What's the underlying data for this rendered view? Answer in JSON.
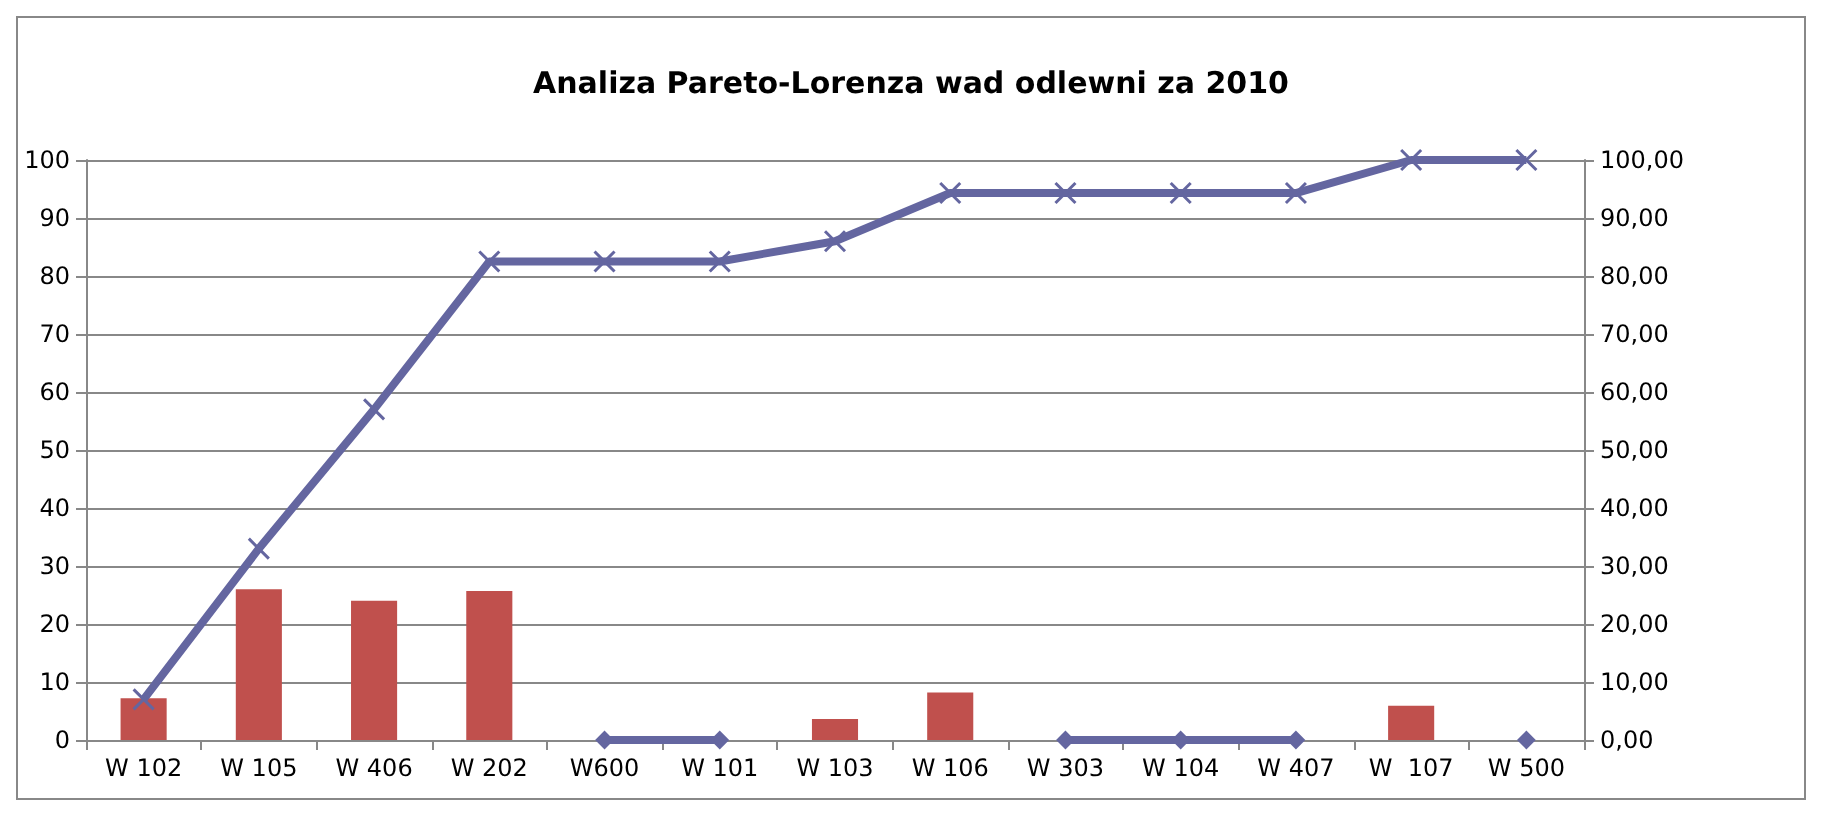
{
  "chart_data": {
    "type": "bar",
    "title": "Analiza Pareto-Lorenza wad odlewni za 2010",
    "categories": [
      "W 102",
      "W 105",
      "W 406",
      "W 202",
      "W600",
      "W 101",
      "W 103",
      "W 106",
      "W 303",
      "W 104",
      "W 407",
      "W  107",
      "W 500"
    ],
    "series": [
      {
        "color": "#c0504d",
        "values": [
          7.2,
          26,
          24,
          25.7,
          null,
          null,
          3.6,
          8.2,
          null,
          null,
          null,
          5.9,
          null
        ]
      },
      {
        "type": "line",
        "color": "#6466a0",
        "marker": "cross",
        "values": [
          7,
          33,
          57,
          82.5,
          82.5,
          82.5,
          86,
          94.3,
          94.3,
          94.3,
          94.3,
          100,
          100
        ]
      },
      {
        "type": "line",
        "color": "#6466a0",
        "marker": "diamond",
        "values": [
          null,
          null,
          null,
          null,
          0,
          0,
          null,
          null,
          0,
          0,
          0,
          null,
          0
        ]
      }
    ],
    "ylim": [
      0,
      100
    ],
    "yticks": [
      0,
      10,
      20,
      30,
      40,
      50,
      60,
      70,
      80,
      90,
      100
    ],
    "y2lim": [
      0,
      100
    ],
    "y2ticks": [
      {
        "value": 0,
        "label": "0,00"
      },
      {
        "value": 10,
        "label": "10,00"
      },
      {
        "value": 20,
        "label": "20,00"
      },
      {
        "value": 30,
        "label": "30,00"
      },
      {
        "value": 40,
        "label": "40,00"
      },
      {
        "value": 50,
        "label": "50,00"
      },
      {
        "value": 60,
        "label": "60,00"
      },
      {
        "value": 70,
        "label": "70,00"
      },
      {
        "value": 80,
        "label": "80,00"
      },
      {
        "value": 90,
        "label": "90,00"
      },
      {
        "value": 100,
        "label": "100,00"
      }
    ],
    "grid": "y"
  }
}
